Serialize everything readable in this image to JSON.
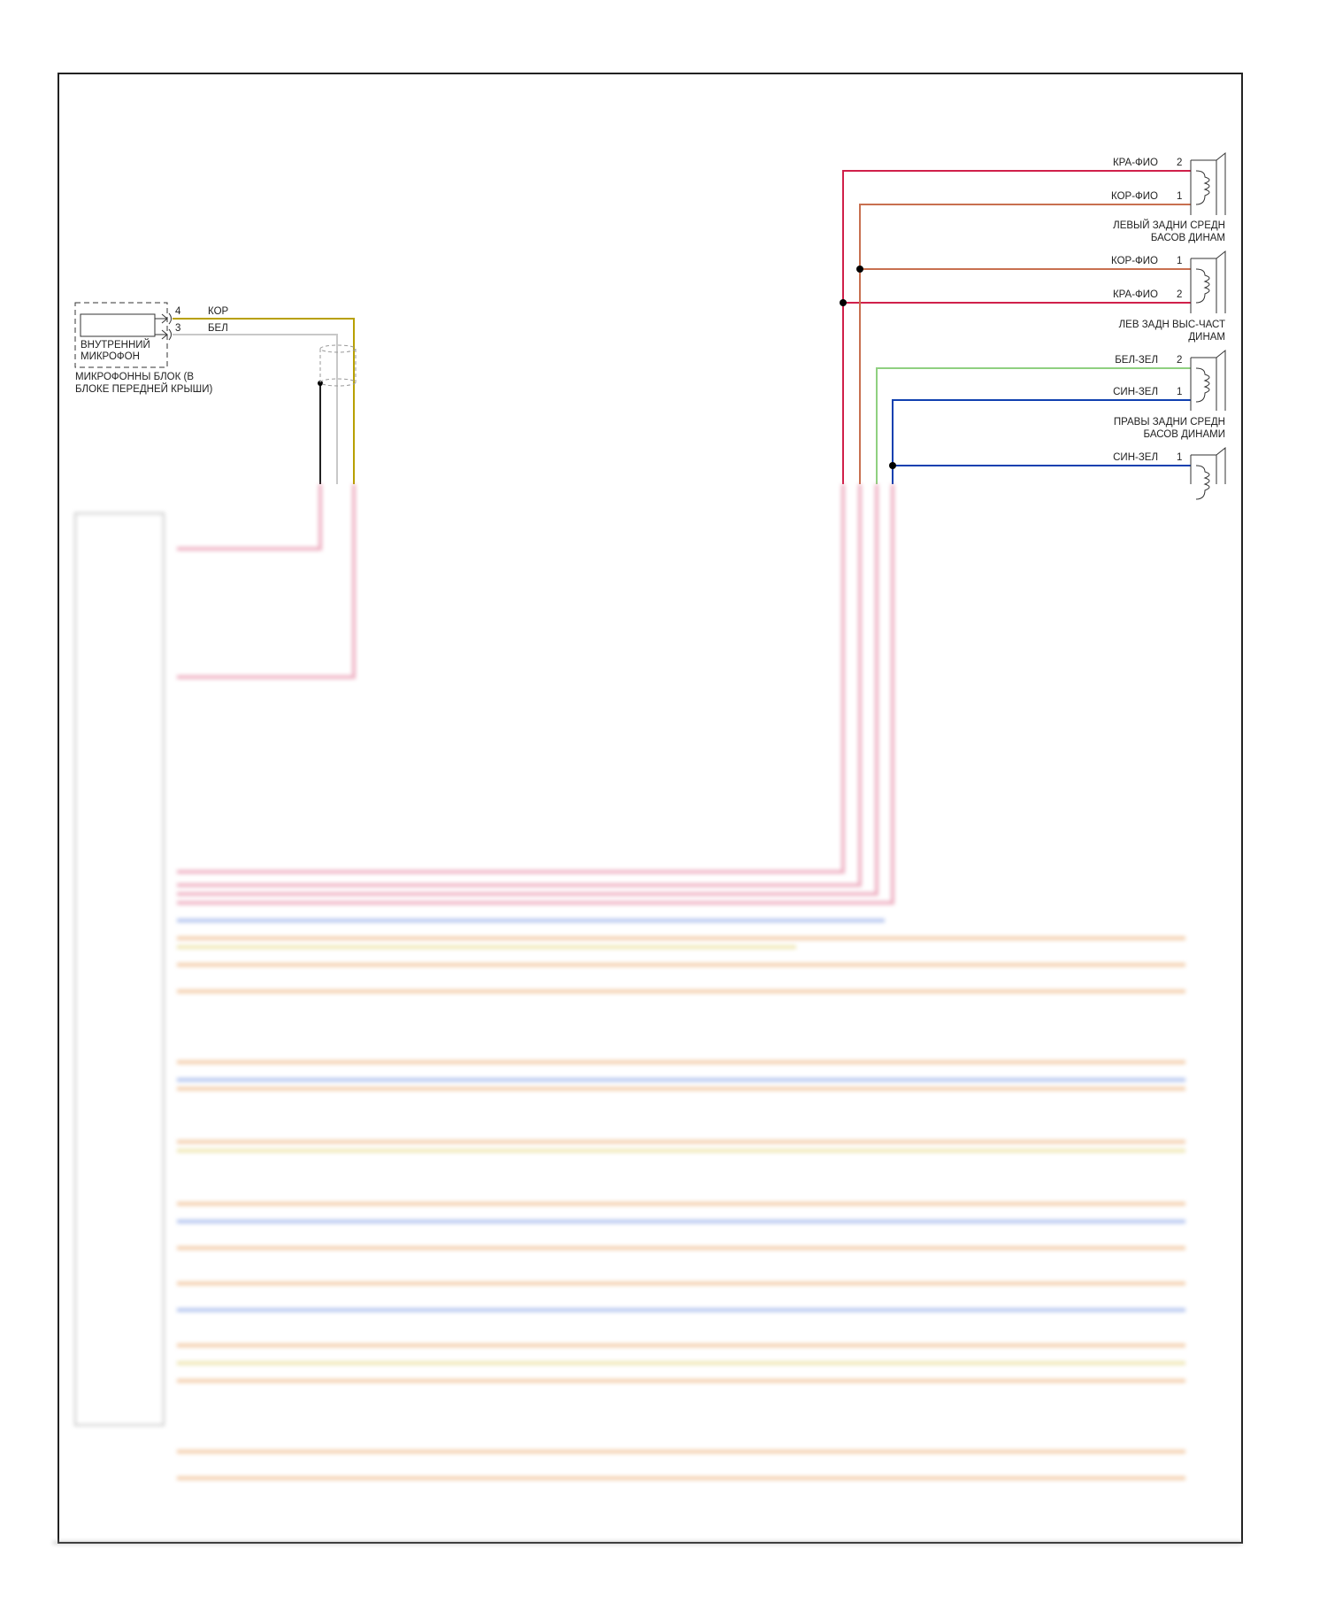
{
  "microphone": {
    "pins": [
      {
        "pin": "4",
        "color": "КОР",
        "hex": "#b8a000"
      },
      {
        "pin": "3",
        "color": "БЕЛ",
        "hex": "#c8c8c8"
      }
    ],
    "inner_label": [
      "ВНУТРЕННИЙ",
      "МИКРОФОН"
    ],
    "block_label": [
      "МИКРОФОННЫ БЛОК (В",
      "БЛОКЕ ПЕРЕДНЕЙ КРЫШИ)"
    ]
  },
  "speakers": [
    {
      "name": [
        "ЛЕВЫЙ ЗАДНИ СРЕДН",
        "БАСОВ ДИНАМ"
      ],
      "wires": [
        {
          "color": "КРА-ФИО",
          "pin": "2",
          "hex": "#d0204a"
        },
        {
          "color": "КОР-ФИО",
          "pin": "1",
          "hex": "#c87050"
        }
      ]
    },
    {
      "name": [
        "ЛЕВ ЗАДН ВЫС-ЧАСТ",
        "ДИНАМ"
      ],
      "wires": [
        {
          "color": "КОР-ФИО",
          "pin": "1",
          "hex": "#c87050"
        },
        {
          "color": "КРА-ФИО",
          "pin": "2",
          "hex": "#d0204a"
        }
      ]
    },
    {
      "name": [
        "ПРАВЫ ЗАДНИ СРЕДН",
        "БАСОВ ДИНАМИ"
      ],
      "wires": [
        {
          "color": "БЕЛ-ЗЕЛ",
          "pin": "2",
          "hex": "#8fd080"
        },
        {
          "color": "СИН-ЗЕЛ",
          "pin": "1",
          "hex": "#1040b0"
        }
      ]
    },
    {
      "name": [],
      "wires": [
        {
          "color": "СИН-ЗЕЛ",
          "pin": "1",
          "hex": "#1040b0"
        }
      ]
    }
  ]
}
